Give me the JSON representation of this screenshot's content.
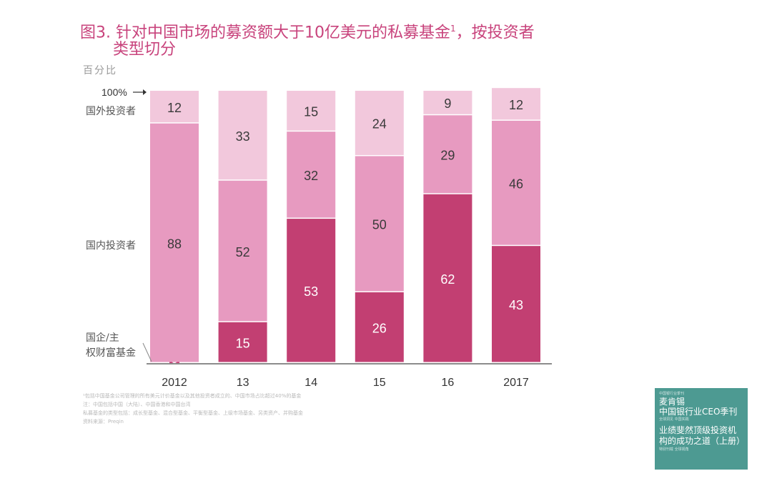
{
  "title": {
    "main": "图3. 针对中国市场的募资额大于10亿美元的私募基金",
    "footnote_mark": "1",
    "suffix": "，按投资者",
    "line2": "类型切分",
    "unit": "百分比"
  },
  "chart_data": {
    "type": "bar",
    "stacked": true,
    "categories": [
      "2012",
      "13",
      "14",
      "15",
      "16",
      "2017"
    ],
    "series": [
      {
        "name": "国企/主权财富基金",
        "values": [
          0,
          15,
          53,
          26,
          62,
          43
        ],
        "color": "#c23f72"
      },
      {
        "name": "国内投资者",
        "values": [
          88,
          52,
          32,
          50,
          29,
          46
        ],
        "color": "#e79ac0"
      },
      {
        "name": "国外投资者",
        "values": [
          12,
          33,
          15,
          24,
          9,
          12
        ],
        "color": "#f2c8dc"
      }
    ],
    "top_marker": "100%",
    "ylim": [
      0,
      100
    ],
    "grid": false
  },
  "footnotes": [
    "¹包括中国基金公司管理的所有美元计价基金以及其他投资者成立的、中国市场占比超过40%的基金",
    "注：中国包括中国（大陆）、中国香港和中国台湾",
    "私募基金的类型包括：成长型基金、混合型基金、平衡型基金、上级市场基金、另类资产、并购基金",
    "资料来源：Preqin"
  ],
  "cover": {
    "tiny_top": "中国银行业季刊",
    "brand": "麦肯锡",
    "publication": "中国银行业CEO季刊",
    "tiny_mid": "全球洞见 中国实践",
    "book_title": "业绩斐然顶级投资机构的成功之道（上册）",
    "tiny_bottom": "特别刊载 全球视角"
  }
}
